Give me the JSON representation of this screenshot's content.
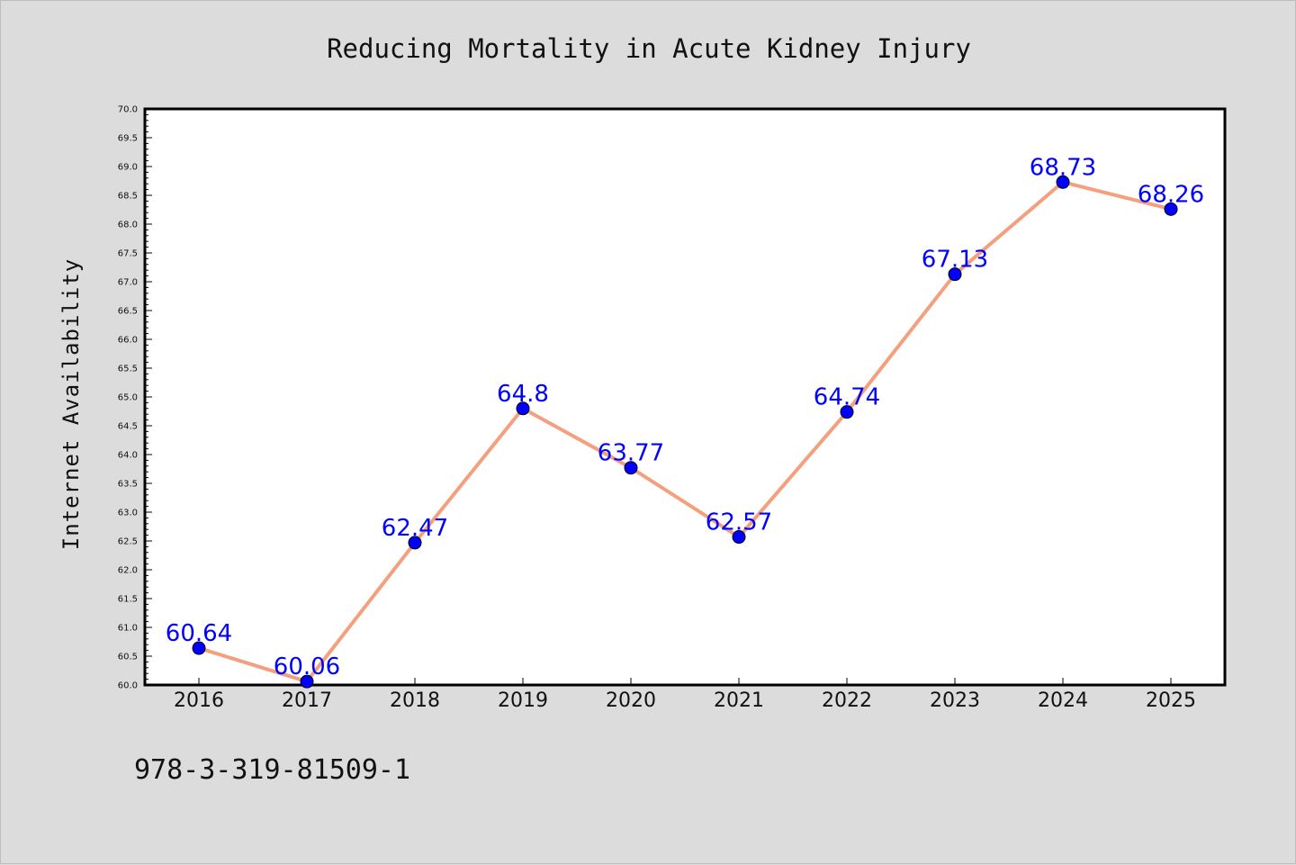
{
  "footer": {
    "isbn": "978-3-319-81509-1"
  },
  "chart_data": {
    "type": "line",
    "title": "Reducing Mortality in Acute Kidney Injury",
    "xlabel": "",
    "ylabel": "Internet Availability",
    "categories": [
      "2016",
      "2017",
      "2018",
      "2019",
      "2020",
      "2021",
      "2022",
      "2023",
      "2024",
      "2025"
    ],
    "values": [
      60.64,
      60.06,
      62.47,
      64.8,
      63.77,
      62.57,
      64.74,
      67.13,
      68.73,
      68.26
    ],
    "value_labels": [
      "60.64",
      "60.06",
      "62.47",
      "64.8",
      "63.77",
      "62.57",
      "64.74",
      "67.13",
      "68.73",
      "68.26"
    ],
    "ylim": [
      60.0,
      70.0
    ],
    "ytick_step": 0.5,
    "grid": false,
    "colors": {
      "line": "#f4a07e",
      "marker": "#0000ff",
      "label": "#0000ff",
      "background": "#dcdcdc",
      "plot_area": "#ffffff"
    }
  }
}
